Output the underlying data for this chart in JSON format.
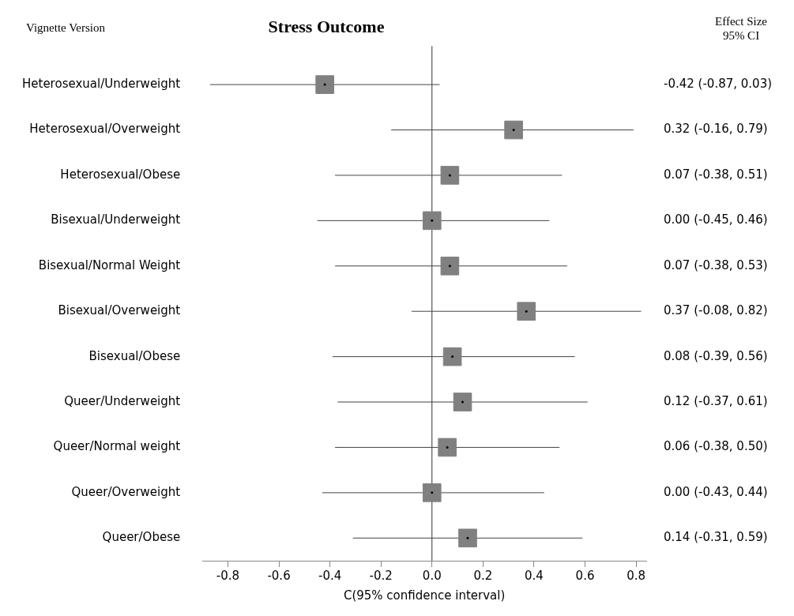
{
  "chart_data": {
    "type": "scatter",
    "orientation": "horizontal",
    "title": "Stress Outcome",
    "xlabel": "C(95% confidence interval)",
    "annotations": [
      "Vignette Version",
      "Effect Size\n95% CI"
    ],
    "categories": [
      "Heterosexual/Underweight",
      "Heterosexual/Overweight",
      "Heterosexual/Obese",
      "Bisexual/Underweight",
      "Bisexual/Normal Weight",
      "Bisexual/Overweight",
      "Bisexual/Obese",
      "Queer/Underweight",
      "Queer/Normal weight",
      "Queer/Overweight",
      "Queer/Obese"
    ],
    "values": [
      -0.42,
      0.32,
      0.07,
      0.0,
      0.07,
      0.37,
      0.08,
      0.12,
      0.06,
      0.0,
      0.14
    ],
    "errors": [
      [
        -0.87,
        0.03
      ],
      [
        -0.16,
        0.79
      ],
      [
        -0.38,
        0.51
      ],
      [
        -0.45,
        0.46
      ],
      [
        -0.38,
        0.53
      ],
      [
        -0.08,
        0.82
      ],
      [
        -0.39,
        0.56
      ],
      [
        -0.37,
        0.61
      ],
      [
        -0.38,
        0.5
      ],
      [
        -0.43,
        0.44
      ],
      [
        -0.31,
        0.59
      ]
    ],
    "value_labels": [
      "-0.42 (-0.87, 0.03)",
      "0.32 (-0.16, 0.79)",
      "0.07 (-0.38, 0.51)",
      "0.00 (-0.45, 0.46)",
      "0.07 (-0.38, 0.53)",
      "0.37 (-0.08, 0.82)",
      "0.08 (-0.39, 0.56)",
      "0.12 (-0.37, 0.61)",
      "0.06 (-0.38, 0.50)",
      "0.00 (-0.43, 0.44)",
      "0.14 (-0.31, 0.59)"
    ],
    "color": "#808080",
    "marker": "square",
    "grid": false,
    "xlim": [
      -0.9,
      0.84
    ],
    "xticks": [
      {
        "value": -0.8,
        "label": "-0.8"
      },
      {
        "value": -0.6,
        "label": "-0.6"
      },
      {
        "value": -0.4,
        "label": "-0.4"
      },
      {
        "value": -0.2,
        "label": "-0.2"
      },
      {
        "value": 0,
        "label": "0.0"
      },
      {
        "value": 0.2,
        "label": "0.2"
      },
      {
        "value": 0.4,
        "label": "0.4"
      },
      {
        "value": 0.6,
        "label": "0.6"
      },
      {
        "value": 0.8,
        "label": "0.8"
      }
    ],
    "ref_lines": [
      {
        "axis": "x",
        "value": 0
      }
    ]
  }
}
